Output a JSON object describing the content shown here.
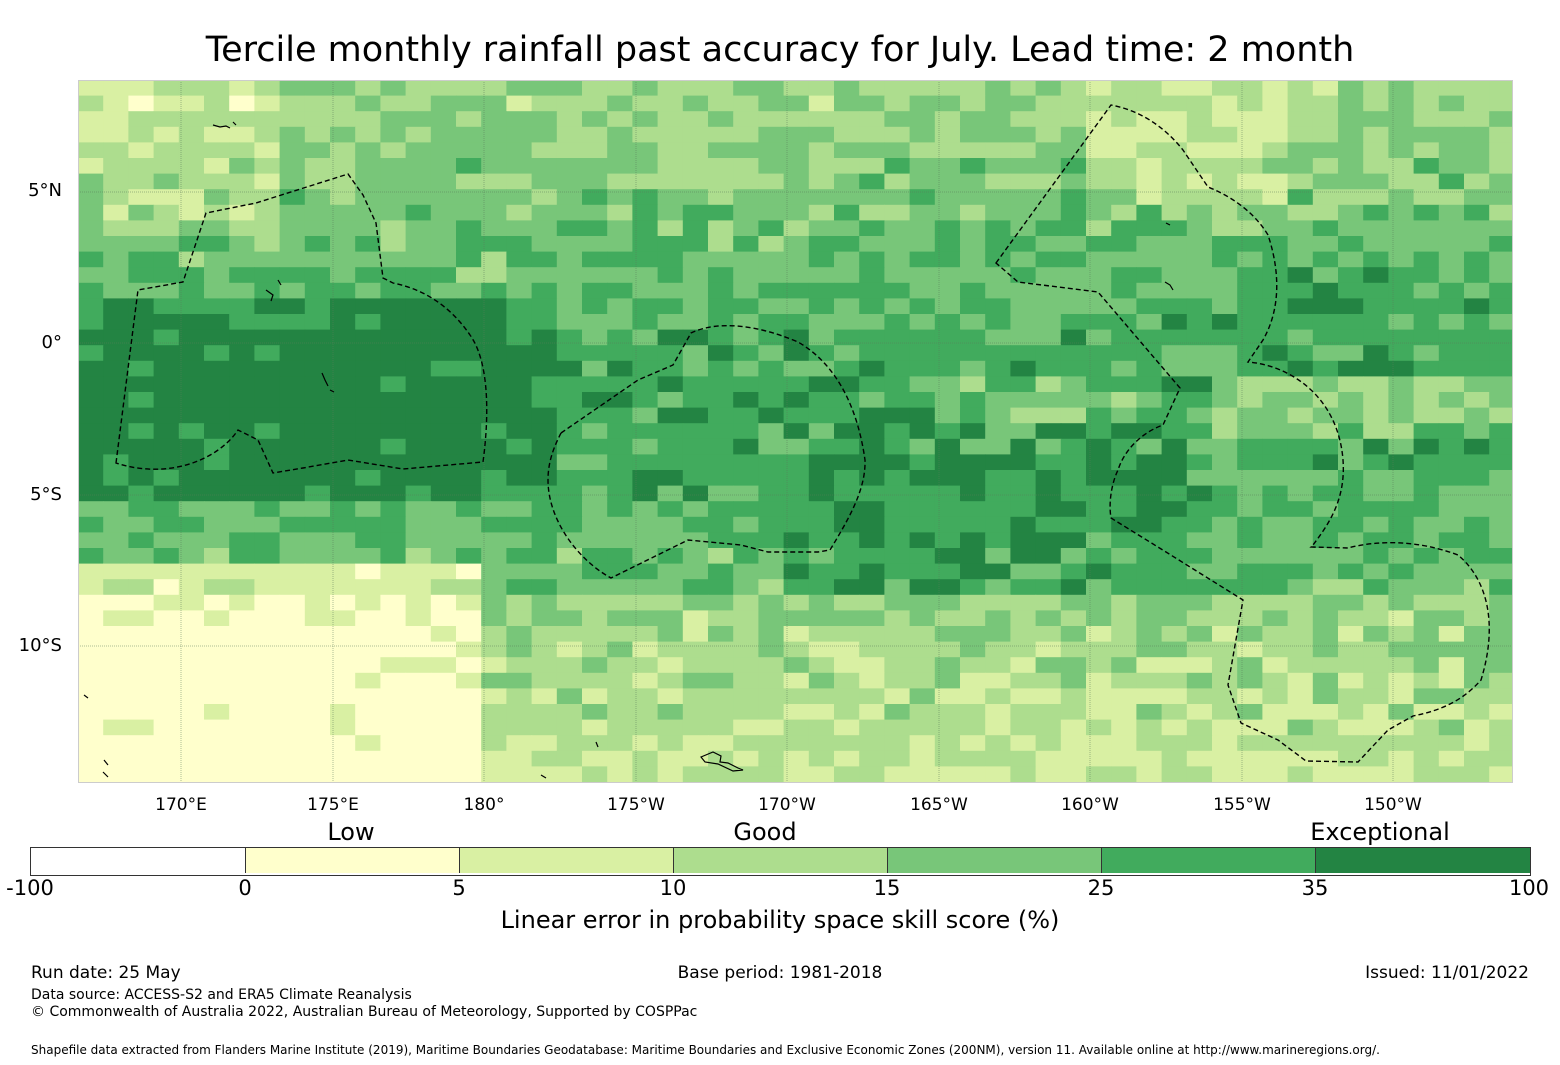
{
  "title": "Tercile monthly rainfall past accuracy for July. Lead time: 2 month",
  "map": {
    "lat_labels": [
      "5°N",
      "0°",
      "5°S",
      "10°S"
    ],
    "lon_labels": [
      "170°E",
      "175°E",
      "180°",
      "175°W",
      "170°W",
      "165°W",
      "160°W",
      "155°W",
      "150°W"
    ],
    "lat_range": [
      -14.5,
      8.7
    ],
    "lon_range": [
      166.6,
      213.8
    ]
  },
  "legend": {
    "categories": [
      "Low",
      "Good",
      "Exceptional"
    ],
    "ticks": [
      "-100",
      "0",
      "5",
      "10",
      "15",
      "25",
      "35",
      "100"
    ],
    "colors": [
      "#ffffff",
      "#ffffcc",
      "#d9f0a3",
      "#addd8e",
      "#78c679",
      "#41ab5d",
      "#238443"
    ],
    "label": "Linear error in probability space skill score (%)"
  },
  "footer": {
    "run_date": "Run date: 25 May",
    "base_period": "Base period: 1981-2018",
    "issued": "Issued: 11/01/2022",
    "data_source": "Data source: ACCESS-S2 and ERA5 Climate Reanalysis",
    "copyright": "© Commonwealth of Australia 2022, Australian Bureau of Meteorology, Supported by COSPPac",
    "shapefile": "Shapefile data extracted from Flanders Marine Institute (2019), Maritime Boundaries Geodatabase: Maritime Boundaries and Exclusive Economic Zones (200NM), version 11. Available online at http://www.marineregions.org/."
  }
}
